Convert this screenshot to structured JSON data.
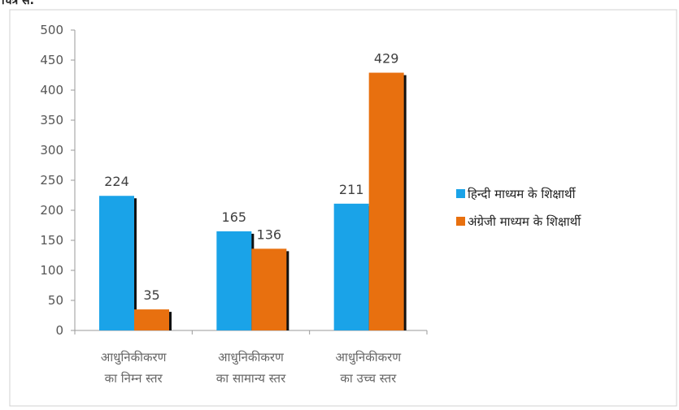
{
  "header_fragment": "चित्र सं.",
  "chart_data": {
    "type": "bar",
    "categories": [
      [
        "आधुनिकीकरण",
        "का निम्न स्तर"
      ],
      [
        "आधुनिकीकरण",
        "का सामान्य स्तर"
      ],
      [
        "आधुनिकीकरण",
        "का उच्च स्तर"
      ]
    ],
    "series": [
      {
        "name": "हिन्दी माध्यम के  शिक्षार्थी",
        "values": [
          224,
          165,
          211
        ],
        "color": "#1aa3e8"
      },
      {
        "name": "अंग्रेजी माध्यम के  शिक्षार्थी",
        "values": [
          35,
          136,
          429
        ],
        "color": "#e8700f"
      }
    ],
    "ylim": [
      0,
      500
    ],
    "yticks": [
      0,
      50,
      100,
      150,
      200,
      250,
      300,
      350,
      400,
      450,
      500
    ],
    "grid": false,
    "legend_position": "right",
    "data_labels": true
  }
}
